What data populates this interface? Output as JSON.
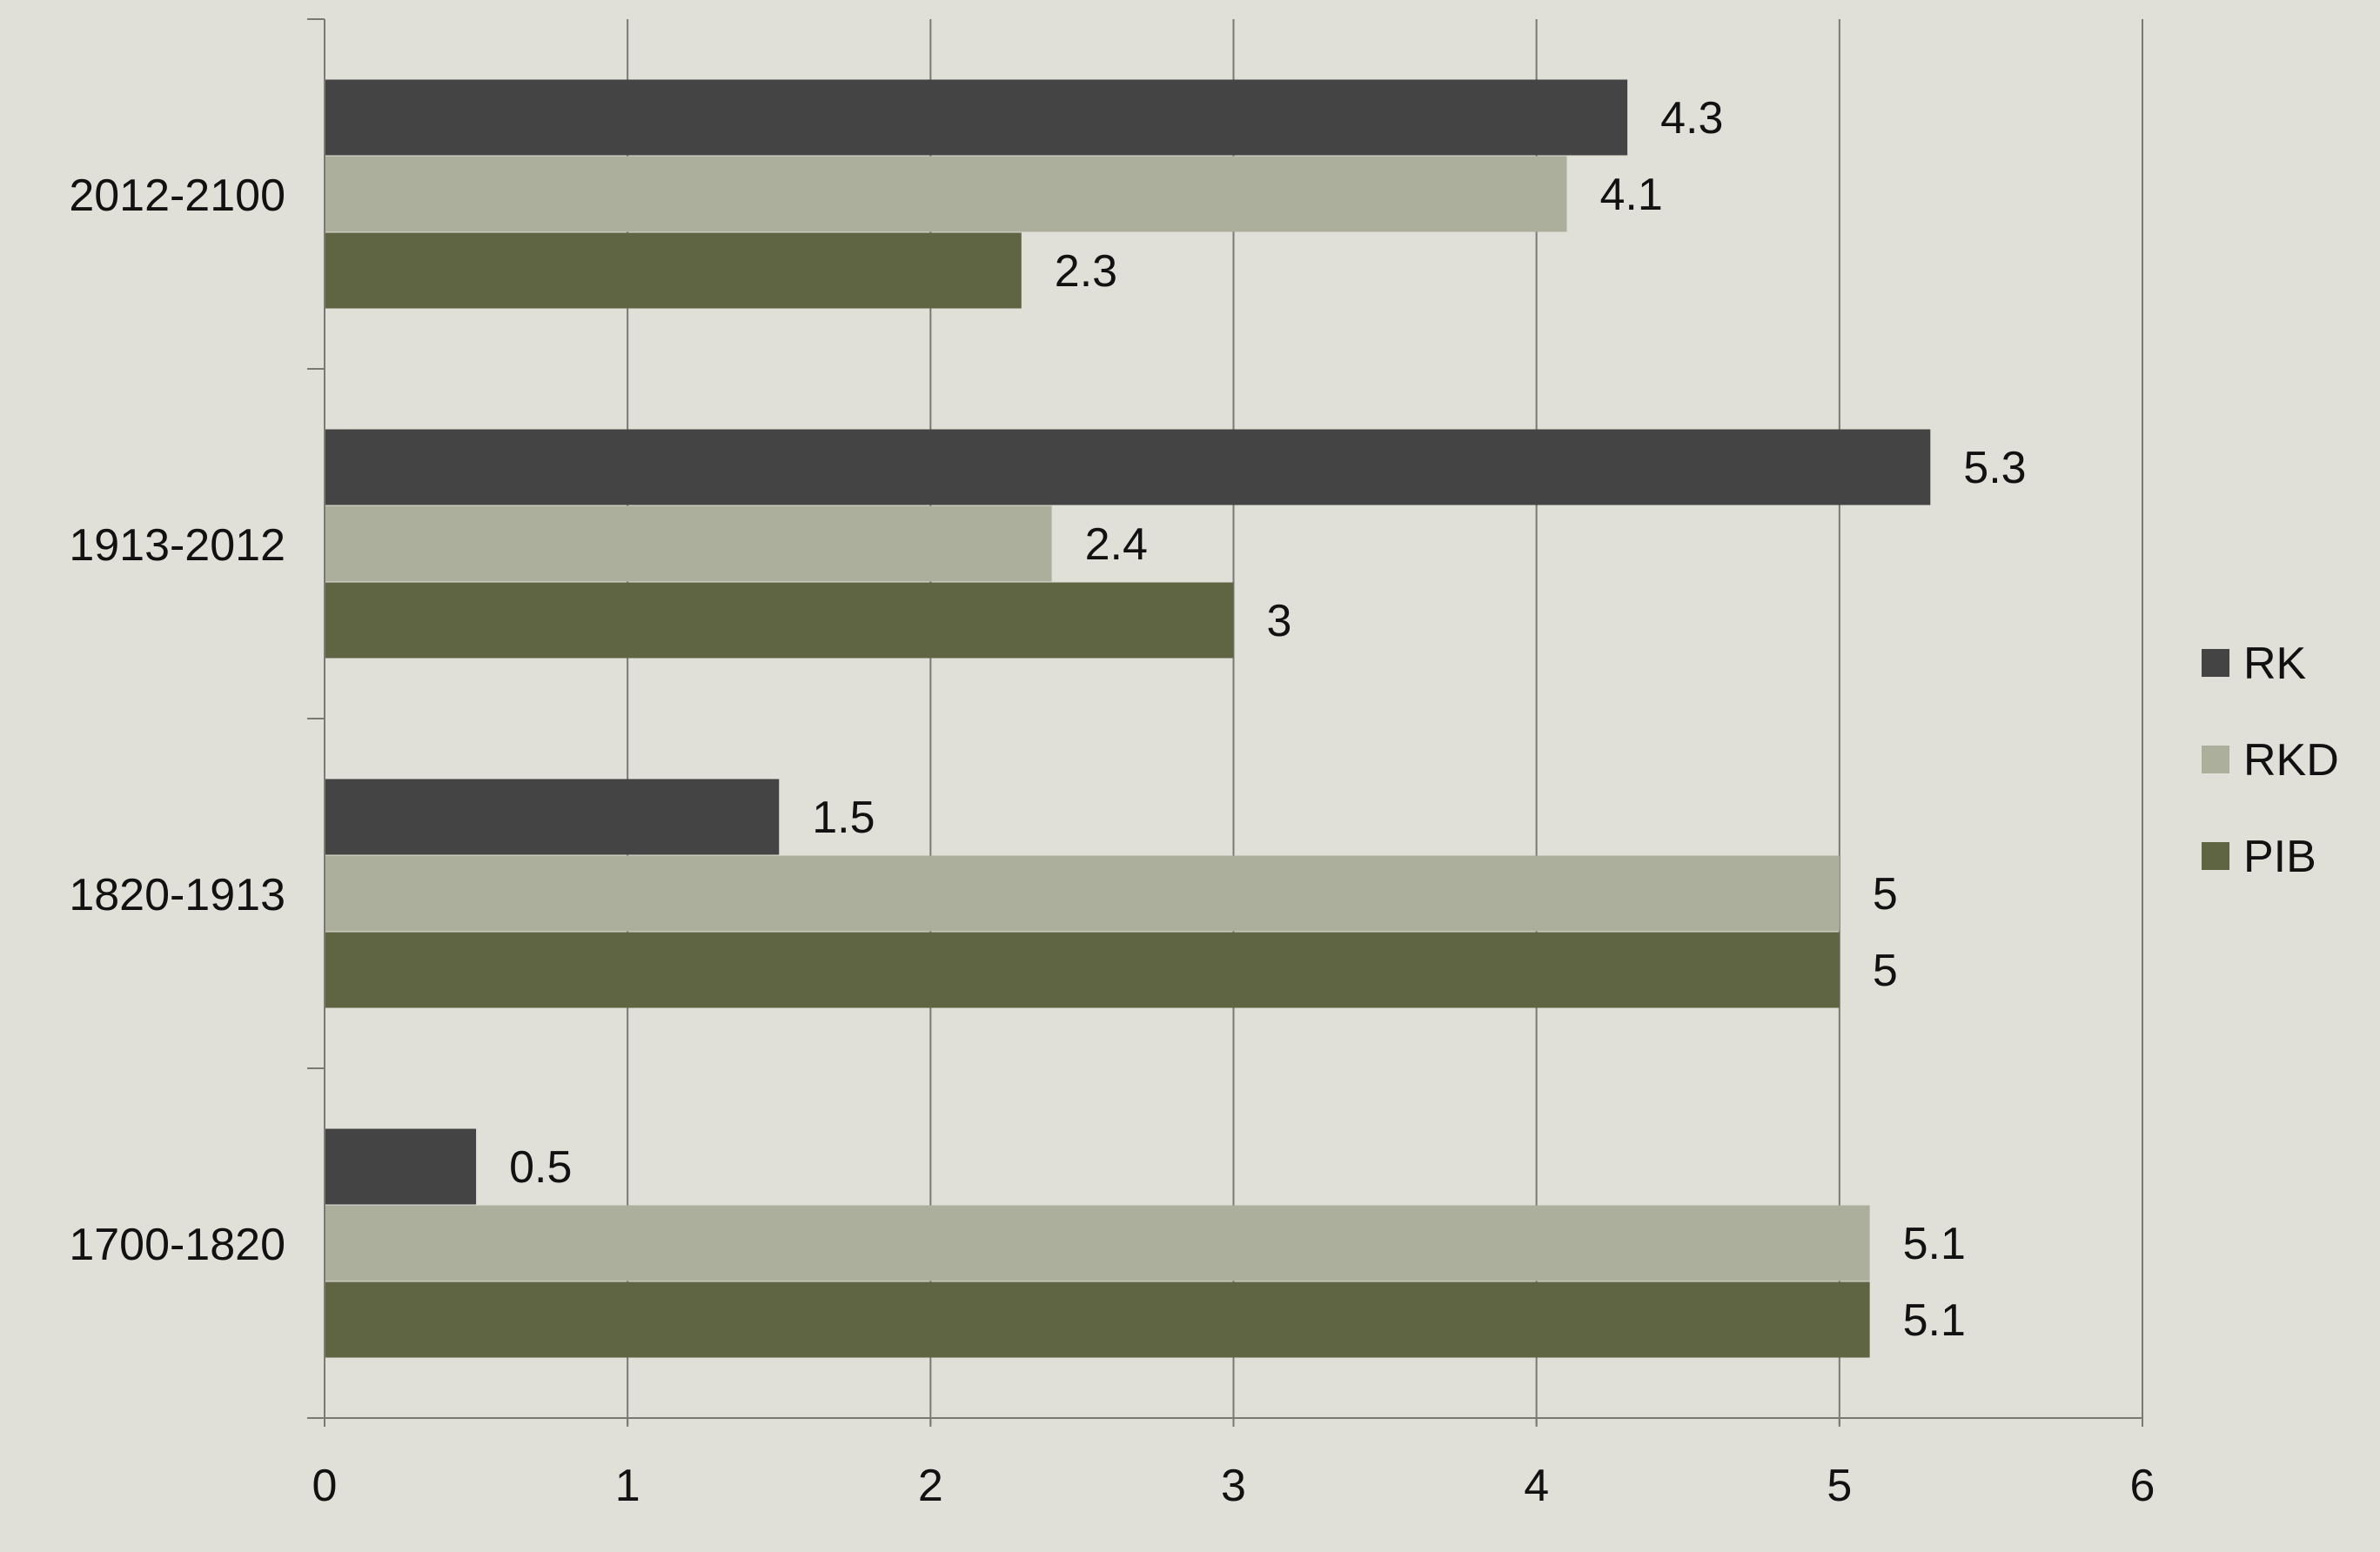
{
  "chart_data": {
    "type": "bar",
    "orientation": "horizontal",
    "categories": [
      "2012-2100",
      "1913-2012",
      "1820-1913",
      "1700-1820"
    ],
    "series": [
      {
        "name": "RK",
        "color": "#444444",
        "values": [
          4.3,
          5.3,
          1.5,
          0.5
        ]
      },
      {
        "name": "RKD",
        "color": "#abaf9c",
        "values": [
          4.1,
          2.4,
          5.0,
          5.1
        ]
      },
      {
        "name": "PIB",
        "color": "#5f6542",
        "values": [
          2.3,
          3.0,
          5.0,
          5.1
        ]
      }
    ],
    "data_labels": [
      [
        "4.3",
        "5.3",
        "1.5",
        "0.5"
      ],
      [
        "4.1",
        "2.4",
        "5",
        "5.1"
      ],
      [
        "2.3",
        "3",
        "5",
        "5.1"
      ]
    ],
    "xlim": [
      0,
      6
    ],
    "xticks": [
      "0",
      "1",
      "2",
      "3",
      "4",
      "5",
      "6"
    ],
    "grid": "vertical",
    "legend_position": "right"
  },
  "colors": {
    "background": "#e0e0d9",
    "gridline": "#7a7a72",
    "axis": "#7a7a72"
  }
}
